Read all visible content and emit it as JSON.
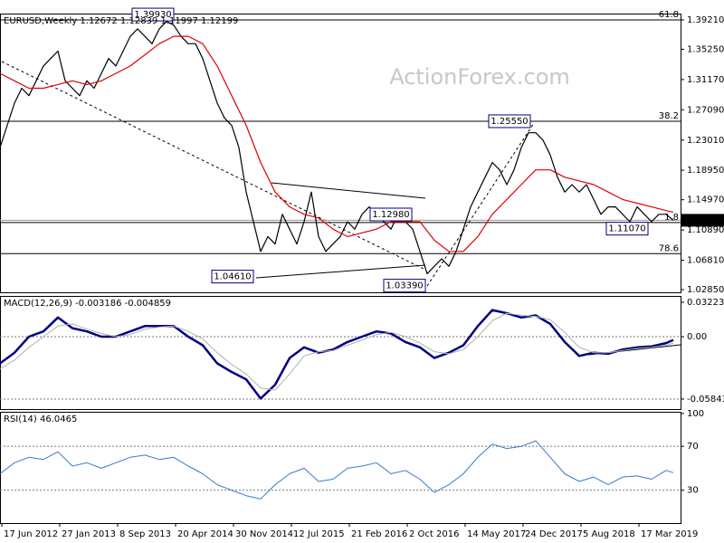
{
  "chart_data": [
    {
      "type": "line",
      "title": "EURUSD,Weekly  1.12672 1.12839 1.11997 1.12199",
      "watermark": "ActionForex.com",
      "xlim": [
        0,
        376
      ],
      "ylim": [
        1.0249,
        1.4006
      ],
      "yticks": [
        {
          "value": 1.3921,
          "label": "1.39210"
        },
        {
          "value": 1.3525,
          "label": "1.35250"
        },
        {
          "value": 1.3117,
          "label": "1.31170"
        },
        {
          "value": 1.2709,
          "label": "1.27090"
        },
        {
          "value": 1.2301,
          "label": "1.23010"
        },
        {
          "value": 1.1895,
          "label": "1.18950"
        },
        {
          "value": 1.1497,
          "label": "1.14970"
        },
        {
          "value": 1.1089,
          "label": "1.10890"
        },
        {
          "value": 1.0681,
          "label": "1.06810"
        },
        {
          "value": 1.0285,
          "label": "1.02850"
        }
      ],
      "series": [
        {
          "name": "EURUSD",
          "color": "#000000",
          "x": [
            0,
            4,
            8,
            12,
            16,
            20,
            24,
            28,
            32,
            36,
            40,
            44,
            48,
            52,
            56,
            60,
            64,
            68,
            72,
            76,
            80,
            84,
            88,
            92,
            96,
            100,
            104,
            108,
            112,
            116,
            120,
            124,
            128,
            132,
            136,
            140,
            144,
            148,
            152,
            156,
            160,
            164,
            168,
            172,
            176,
            180,
            184,
            188,
            192,
            196,
            200,
            204,
            208,
            212,
            216,
            220,
            224,
            228,
            232,
            236,
            240,
            244,
            248,
            252,
            256,
            260,
            264,
            268,
            272,
            276,
            280,
            284,
            288,
            292,
            296,
            300,
            304,
            308,
            312,
            316,
            320,
            324,
            328,
            332,
            336,
            340,
            344,
            348,
            352,
            356,
            360,
            364,
            368,
            372
          ],
          "values": [
            1.22,
            1.25,
            1.28,
            1.3,
            1.29,
            1.31,
            1.33,
            1.34,
            1.35,
            1.31,
            1.3,
            1.29,
            1.31,
            1.3,
            1.32,
            1.34,
            1.33,
            1.35,
            1.37,
            1.38,
            1.37,
            1.36,
            1.38,
            1.39,
            1.385,
            1.37,
            1.36,
            1.36,
            1.34,
            1.31,
            1.28,
            1.26,
            1.25,
            1.22,
            1.16,
            1.12,
            1.08,
            1.1,
            1.09,
            1.13,
            1.11,
            1.09,
            1.12,
            1.16,
            1.1,
            1.08,
            1.09,
            1.1,
            1.12,
            1.11,
            1.13,
            1.14,
            1.13,
            1.12,
            1.11,
            1.13,
            1.12,
            1.11,
            1.08,
            1.05,
            1.06,
            1.07,
            1.06,
            1.08,
            1.11,
            1.14,
            1.16,
            1.18,
            1.2,
            1.19,
            1.17,
            1.19,
            1.22,
            1.24,
            1.24,
            1.23,
            1.21,
            1.18,
            1.16,
            1.17,
            1.16,
            1.17,
            1.15,
            1.13,
            1.14,
            1.14,
            1.13,
            1.12,
            1.14,
            1.13,
            1.12,
            1.13,
            1.13,
            1.122
          ]
        },
        {
          "name": "MA",
          "color": "#e00000",
          "x": [
            0,
            8,
            16,
            24,
            32,
            40,
            48,
            56,
            64,
            72,
            80,
            88,
            96,
            104,
            112,
            120,
            128,
            136,
            144,
            152,
            160,
            168,
            176,
            184,
            192,
            200,
            208,
            216,
            224,
            232,
            240,
            248,
            256,
            264,
            272,
            280,
            288,
            296,
            304,
            312,
            320,
            328,
            336,
            344,
            352,
            360,
            368,
            372
          ],
          "values": [
            1.32,
            1.31,
            1.3,
            1.3,
            1.305,
            1.31,
            1.305,
            1.31,
            1.32,
            1.33,
            1.345,
            1.36,
            1.37,
            1.37,
            1.36,
            1.33,
            1.29,
            1.25,
            1.2,
            1.16,
            1.14,
            1.13,
            1.125,
            1.11,
            1.1,
            1.105,
            1.11,
            1.12,
            1.12,
            1.12,
            1.095,
            1.08,
            1.08,
            1.1,
            1.13,
            1.15,
            1.17,
            1.19,
            1.19,
            1.18,
            1.175,
            1.17,
            1.16,
            1.15,
            1.145,
            1.14,
            1.135,
            1.133
          ]
        }
      ],
      "levels": [
        {
          "value": 1.3921,
          "label": "61.8"
        },
        {
          "value": 1.2555,
          "label": "38.2"
        },
        {
          "value": 1.119,
          "label": "1.8"
        },
        {
          "value": 1.077,
          "label": "78.6"
        }
      ],
      "last": 1.12199,
      "annotations": [
        {
          "x": 73,
          "value": 1.3993,
          "label": "1.39930"
        },
        {
          "x": 270,
          "value": 1.2555,
          "label": "1.25550"
        },
        {
          "x": 335,
          "value": 1.1107,
          "label": "1.11070"
        },
        {
          "x": 117,
          "value": 1.0461,
          "label": "1.04610"
        },
        {
          "x": 212,
          "value": 1.0339,
          "label": "1.03390"
        },
        {
          "x": 204.5,
          "value": 1.1298,
          "label": "1.12980"
        }
      ]
    },
    {
      "type": "line",
      "title": "MACD(12,26,9) -0.003186 -0.004859",
      "xlim": [
        0,
        376
      ],
      "ylim": [
        -0.0678,
        0.0382
      ],
      "dotted_ticks": true,
      "yticks": [
        0.032235,
        {
          "value": 0,
          "label": "0.00"
        },
        -0.058434
      ],
      "series": [
        {
          "name": "MACD",
          "color": "#000080",
          "width": 2.5,
          "x": [
            0,
            8,
            16,
            24,
            32,
            40,
            48,
            56,
            64,
            72,
            80,
            88,
            96,
            104,
            112,
            120,
            128,
            136,
            144,
            152,
            160,
            168,
            176,
            184,
            192,
            200,
            208,
            216,
            224,
            232,
            240,
            248,
            256,
            264,
            272,
            280,
            288,
            296,
            304,
            312,
            320,
            328,
            336,
            344,
            352,
            360,
            368,
            372
          ],
          "values": [
            -0.025,
            -0.015,
            0.0,
            0.005,
            0.018,
            0.008,
            0.005,
            0.0,
            0.0,
            0.005,
            0.01,
            0.01,
            0.01,
            0.0,
            -0.008,
            -0.025,
            -0.033,
            -0.04,
            -0.058,
            -0.045,
            -0.02,
            -0.01,
            -0.015,
            -0.012,
            -0.005,
            0.0,
            0.005,
            0.003,
            -0.005,
            -0.01,
            -0.02,
            -0.015,
            -0.008,
            0.01,
            0.025,
            0.022,
            0.018,
            0.02,
            0.012,
            -0.005,
            -0.018,
            -0.015,
            -0.016,
            -0.012,
            -0.01,
            -0.009,
            -0.006,
            -0.003
          ]
        },
        {
          "name": "Signal",
          "color": "#b0b0b0",
          "width": 1,
          "x": [
            0,
            8,
            16,
            24,
            32,
            40,
            48,
            56,
            64,
            72,
            80,
            88,
            96,
            104,
            112,
            120,
            128,
            136,
            144,
            152,
            160,
            168,
            176,
            184,
            192,
            200,
            208,
            216,
            224,
            232,
            240,
            248,
            256,
            264,
            272,
            280,
            288,
            296,
            304,
            312,
            320,
            328,
            336,
            344,
            352,
            360,
            368,
            372
          ],
          "values": [
            -0.03,
            -0.022,
            -0.01,
            0.0,
            0.01,
            0.012,
            0.007,
            0.003,
            0.0,
            0.002,
            0.007,
            0.009,
            0.01,
            0.005,
            -0.002,
            -0.015,
            -0.026,
            -0.035,
            -0.048,
            -0.05,
            -0.035,
            -0.018,
            -0.014,
            -0.013,
            -0.008,
            -0.003,
            0.002,
            0.004,
            0.0,
            -0.006,
            -0.014,
            -0.016,
            -0.012,
            0.0,
            0.015,
            0.022,
            0.02,
            0.019,
            0.016,
            0.004,
            -0.01,
            -0.015,
            -0.015,
            -0.013,
            -0.011,
            -0.01,
            -0.008,
            -0.006
          ]
        }
      ]
    },
    {
      "type": "line",
      "title": "RSI(14) 46.0465",
      "xlim": [
        0,
        376
      ],
      "ylim": [
        0,
        101.5
      ],
      "dotted_ticks": true,
      "yticks": [
        100,
        70,
        30
      ],
      "xticks": [
        {
          "value": 1,
          "label": "17 Jun 2012"
        },
        {
          "value": 33,
          "label": "27 Jan 2013"
        },
        {
          "value": 65,
          "label": "8 Sep 2013"
        },
        {
          "value": 97,
          "label": "20 Apr 2014"
        },
        {
          "value": 129,
          "label": "30 Nov 2014"
        },
        {
          "value": 161,
          "label": "12 Jul 2015"
        },
        {
          "value": 193,
          "label": "21 Feb 2016"
        },
        {
          "value": 225,
          "label": "2 Oct 2016"
        },
        {
          "value": 257,
          "label": "14 May 2017"
        },
        {
          "value": 289,
          "label": "24 Dec 2017"
        },
        {
          "value": 321,
          "label": "5 Aug 2018"
        },
        {
          "value": 353,
          "label": "17 Mar 2019"
        }
      ],
      "series": [
        {
          "name": "RSI",
          "color": "#3a78c8",
          "width": 1,
          "x": [
            0,
            8,
            16,
            24,
            32,
            40,
            48,
            56,
            64,
            72,
            80,
            88,
            96,
            104,
            112,
            120,
            128,
            136,
            144,
            152,
            160,
            168,
            176,
            184,
            192,
            200,
            208,
            216,
            224,
            232,
            240,
            248,
            256,
            264,
            272,
            280,
            288,
            296,
            304,
            312,
            320,
            328,
            336,
            344,
            352,
            360,
            368,
            372
          ],
          "values": [
            45,
            55,
            60,
            58,
            65,
            52,
            55,
            50,
            55,
            60,
            62,
            58,
            60,
            52,
            45,
            35,
            30,
            25,
            22,
            35,
            45,
            50,
            38,
            40,
            50,
            52,
            55,
            45,
            48,
            40,
            28,
            35,
            45,
            60,
            72,
            68,
            70,
            75,
            60,
            45,
            38,
            42,
            35,
            42,
            43,
            40,
            48,
            46
          ]
        }
      ]
    }
  ]
}
